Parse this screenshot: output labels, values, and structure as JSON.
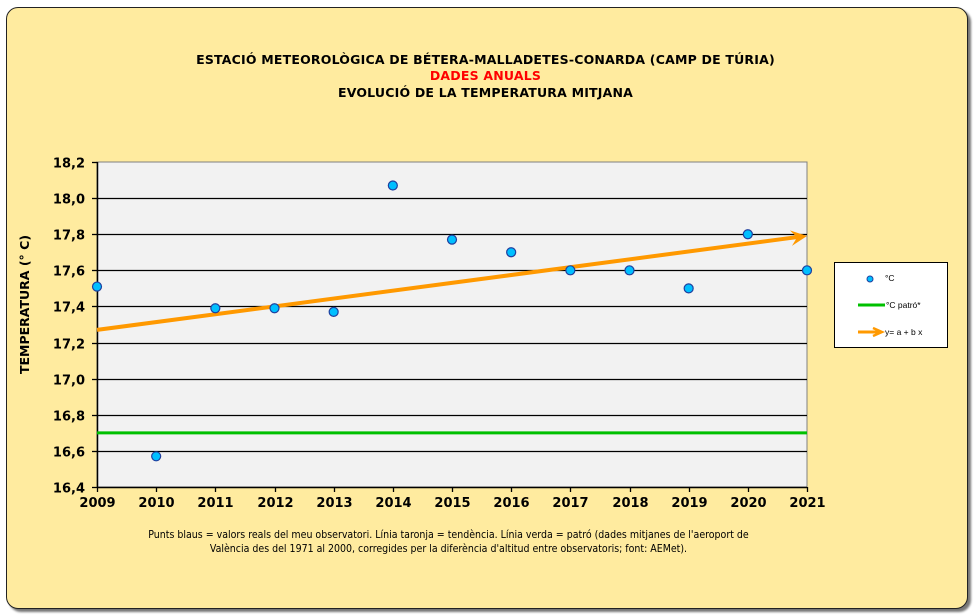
{
  "header": {
    "title_line1": "ESTACIÓ METEOROLÒGICA DE BÉTERA-MALLADETES-CONARDA (CAMP DE TÚRIA)",
    "title_line2": "DADES ANUALS",
    "title_line3": "EVOLUCIÓ DE LA TEMPERATURA MITJANA"
  },
  "legend": {
    "items": [
      {
        "label": "°C",
        "icon": "blue-dot-marker-icon"
      },
      {
        "label": "°C  patró*",
        "icon": "green-line-icon"
      },
      {
        "label": "y= a + b x",
        "icon": "orange-arrow-icon"
      }
    ]
  },
  "caption": {
    "line1": "Punts blaus = valors reals del meu observatori. Línia taronja = tendència. Línia verda = patró (dades mitjanes de l'aeroport de",
    "line2": "València des del 1971 al 2000, corregides per la diferència d'altitud entre observatoris; font: AEMet)."
  },
  "colors": {
    "panel_bg": "#ffeb9f",
    "plot_bg": "#f2f2f2",
    "points": "#00bfff",
    "point_edge": "#1f3f9f",
    "trend": "#ff9900",
    "reference": "#00c000",
    "title_accent": "#ff0000"
  },
  "chart_data": {
    "type": "scatter",
    "title": "EVOLUCIÓ DE LA TEMPERATURA MITJANA",
    "xlabel": "",
    "ylabel": "TEMPERATURA (° C)",
    "xlim": [
      2009,
      2021
    ],
    "ylim": [
      16.4,
      18.2
    ],
    "x_ticks": [
      "2009",
      "2010",
      "2011",
      "2012",
      "2013",
      "2014",
      "2015",
      "2016",
      "2017",
      "2018",
      "2019",
      "2020",
      "2021"
    ],
    "y_ticks": [
      "16,4",
      "16,6",
      "16,8",
      "17,0",
      "17,2",
      "17,4",
      "17,6",
      "17,8",
      "18,0",
      "18,2"
    ],
    "y_tick_values": [
      16.4,
      16.6,
      16.8,
      17.0,
      17.2,
      17.4,
      17.6,
      17.8,
      18.0,
      18.2
    ],
    "grid": "horizontal",
    "legend_position": "right",
    "series": [
      {
        "name": "°C",
        "type": "scatter",
        "x": [
          2009,
          2010,
          2011,
          2012,
          2013,
          2014,
          2015,
          2016,
          2017,
          2018,
          2019,
          2020,
          2021
        ],
        "y": [
          17.51,
          16.57,
          17.39,
          17.39,
          17.37,
          18.07,
          17.77,
          17.7,
          17.6,
          17.6,
          17.5,
          17.8,
          17.6
        ]
      },
      {
        "name": "°C  patró*",
        "type": "hline",
        "y": 16.7
      },
      {
        "name": "y= a + b x",
        "type": "trend",
        "x": [
          2009,
          2021
        ],
        "y": [
          17.27,
          17.79
        ]
      }
    ]
  }
}
